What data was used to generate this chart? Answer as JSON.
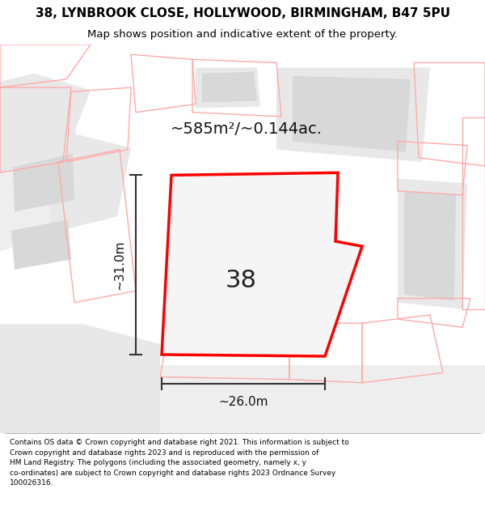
{
  "title_line1": "38, LYNBROOK CLOSE, HOLLYWOOD, BIRMINGHAM, B47 5PU",
  "title_line2": "Map shows position and indicative extent of the property.",
  "area_text": "~585m²/~0.144ac.",
  "number_label": "38",
  "dim_vertical": "~31.0m",
  "dim_horizontal": "~26.0m",
  "footer_text": "Contains OS data © Crown copyright and database right 2021. This information is subject to\nCrown copyright and database rights 2023 and is reproduced with the permission of\nHM Land Registry. The polygons (including the associated geometry, namely x, y\nco-ordinates) are subject to Crown copyright and database rights 2023 Ordnance Survey\n100026316.",
  "bg_color": "#ffffff",
  "map_bg": "#f7f7f7",
  "plot_outline": "#ff0000",
  "other_outline": "#ffaaaa",
  "building_fill": "#d8d8d8",
  "dim_line_color": "#333333",
  "figsize": [
    6.0,
    6.25
  ],
  "dpi": 100,
  "title_fontsize": 11,
  "subtitle_fontsize": 9.5,
  "area_fontsize": 14,
  "number_fontsize": 22,
  "dim_fontsize": 11,
  "footer_fontsize": 6.5
}
